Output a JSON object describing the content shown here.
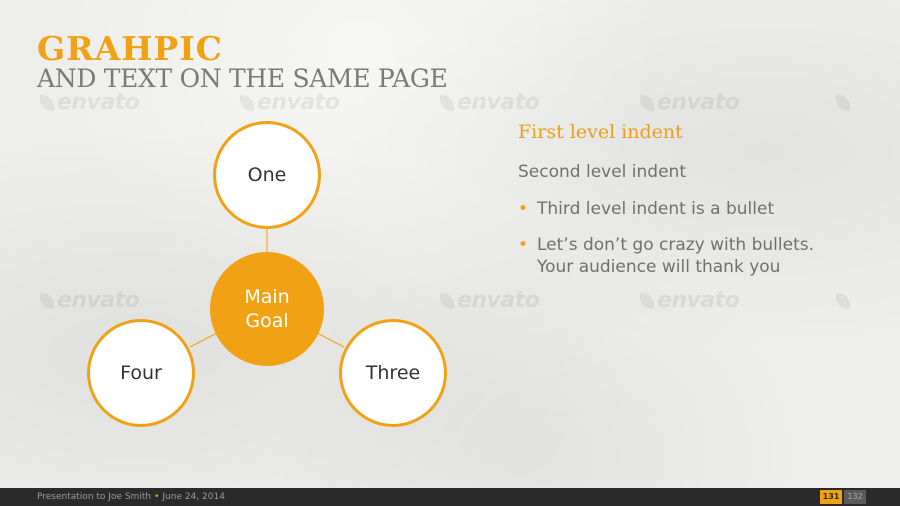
{
  "slide": {
    "title": "GRAHPIC",
    "subtitle": "AND TEXT ON THE SAME PAGE"
  },
  "watermark": {
    "text": "envato"
  },
  "diagram": {
    "center": "Main\nGoal",
    "nodes": [
      "One",
      "Three",
      "Four"
    ]
  },
  "text": {
    "level1": "First level indent",
    "level2": "Second level indent",
    "bullets": [
      "Third level indent is a bullet",
      "Let’s don’t go crazy with bullets.\nYour audience will thank you"
    ]
  },
  "footer": {
    "presenter": "Presentation to Joe Smith",
    "date": "June 24, 2014",
    "page": "131",
    "next_page": "132"
  },
  "colors": {
    "accent": "#f0a214",
    "text_gray": "#707070",
    "footer_bg": "#2a2a2a"
  },
  "icons": {
    "watermark": "envato-leaf-icon",
    "bullet": "bullet-dot-icon",
    "footer_separator": "bullet-dot-icon"
  }
}
